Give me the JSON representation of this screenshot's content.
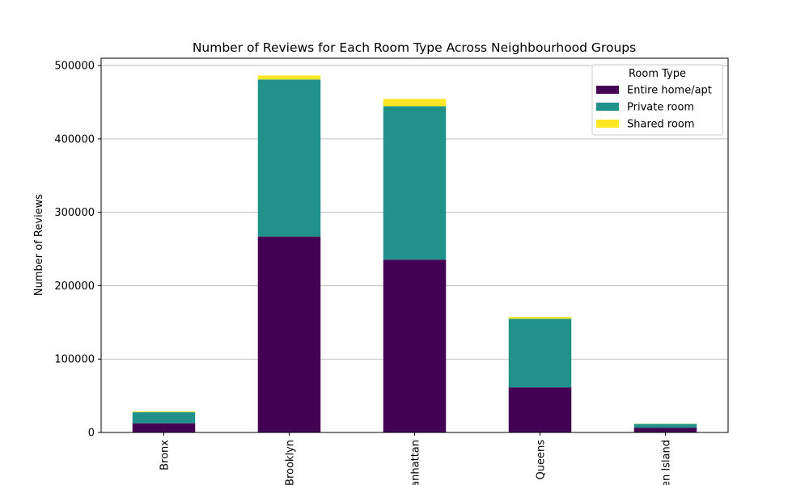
{
  "chart_data": {
    "type": "bar",
    "stacked": true,
    "title": "Number of Reviews for Each Room Type Across Neighbourhood Groups",
    "xlabel": "",
    "ylabel": "Number of Reviews",
    "categories": [
      "Bronx",
      "Brooklyn",
      "Manhattan",
      "Queens",
      "Staten Island"
    ],
    "series": [
      {
        "name": "Entire home/apt",
        "color": "#440154",
        "values": [
          12500,
          267000,
          235500,
          61500,
          6500
        ]
      },
      {
        "name": "Private room",
        "color": "#21918c",
        "values": [
          15000,
          214000,
          209000,
          93500,
          5200
        ]
      },
      {
        "name": "Shared room",
        "color": "#fde725",
        "values": [
          1200,
          5500,
          10000,
          2500,
          300
        ]
      }
    ],
    "ylim": [
      0,
      510000
    ],
    "yticks": [
      0,
      100000,
      200000,
      300000,
      400000,
      500000
    ],
    "grid": "y",
    "legend": {
      "title": "Room Type",
      "position": "top-right"
    }
  }
}
